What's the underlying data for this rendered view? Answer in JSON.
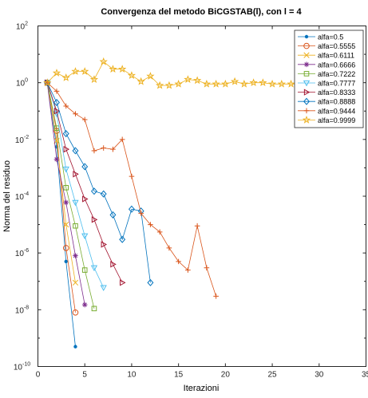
{
  "chart_data": {
    "type": "line",
    "title": "Convergenza del metodo BiCGSTAB(l), con l = 4",
    "xlabel": "Iterazioni",
    "ylabel": "Norma del residuo",
    "xlim": [
      0,
      35
    ],
    "ylim": [
      1e-10,
      100
    ],
    "yscale": "log",
    "grid": false,
    "legend_position": "top-right",
    "x_ticks": [
      "0",
      "5",
      "10",
      "15",
      "20",
      "25",
      "30",
      "35"
    ],
    "y_ticks": [
      {
        "base": "10",
        "exp": "-10",
        "value": 1e-10
      },
      {
        "base": "10",
        "exp": "-8",
        "value": 1e-08
      },
      {
        "base": "10",
        "exp": "-6",
        "value": 1e-06
      },
      {
        "base": "10",
        "exp": "-4",
        "value": 0.0001
      },
      {
        "base": "10",
        "exp": "-2",
        "value": 0.01
      },
      {
        "base": "10",
        "exp": "0",
        "value": 1
      },
      {
        "base": "10",
        "exp": "2",
        "value": 100
      }
    ],
    "series": [
      {
        "name": "alfa=0.5",
        "color": "#0072bd",
        "marker": "dot",
        "x": [
          1,
          2,
          3,
          4
        ],
        "y": [
          1,
          0.0055,
          5e-07,
          5e-10
        ]
      },
      {
        "name": "alfa=0.5555",
        "color": "#d95319",
        "marker": "circle",
        "x": [
          1,
          2,
          3,
          4
        ],
        "y": [
          1,
          0.02,
          1.5e-06,
          8e-09
        ]
      },
      {
        "name": "alfa=0.6111",
        "color": "#edb120",
        "marker": "x",
        "x": [
          1,
          2,
          3,
          4
        ],
        "y": [
          1,
          0.009,
          1e-05,
          9e-08
        ]
      },
      {
        "name": "alfa=0.6666",
        "color": "#7e2f8e",
        "marker": "star",
        "x": [
          1,
          2,
          3,
          4,
          5
        ],
        "y": [
          1,
          0.002,
          6e-05,
          8e-07,
          1.5e-08
        ]
      },
      {
        "name": "alfa=0.7222",
        "color": "#77ac30",
        "marker": "square",
        "x": [
          1,
          2,
          3,
          4,
          5,
          6
        ],
        "y": [
          1,
          0.025,
          0.0002,
          9e-06,
          2.5e-07,
          1.1e-08
        ]
      },
      {
        "name": "alfa=0.7777",
        "color": "#4dbeee",
        "marker": "triangle-down",
        "x": [
          1,
          2,
          3,
          4,
          5,
          6,
          7
        ],
        "y": [
          1,
          0.08,
          0.0009,
          6e-05,
          4e-06,
          3e-07,
          6e-08
        ]
      },
      {
        "name": "alfa=0.8333",
        "color": "#a2142f",
        "marker": "triangle-right",
        "x": [
          1,
          2,
          3,
          4,
          5,
          6,
          7,
          8,
          9
        ],
        "y": [
          1,
          0.1,
          0.0045,
          0.0006,
          8e-05,
          1.5e-05,
          2e-06,
          4e-07,
          9e-08
        ]
      },
      {
        "name": "alfa=0.8888",
        "color": "#0072bd",
        "marker": "diamond",
        "x": [
          1,
          2,
          3,
          4,
          5,
          6,
          7,
          8,
          9,
          10,
          11,
          12
        ],
        "y": [
          1,
          0.2,
          0.016,
          0.004,
          0.0011,
          0.00015,
          0.00012,
          2.2e-05,
          3e-06,
          3.5e-05,
          3e-05,
          9e-08
        ]
      },
      {
        "name": "alfa=0.9444",
        "color": "#d95319",
        "marker": "plus",
        "x": [
          1,
          2,
          3,
          4,
          5,
          6,
          7,
          8,
          9,
          10,
          11,
          12,
          13,
          14,
          15,
          16,
          17,
          18,
          19
        ],
        "y": [
          1,
          0.5,
          0.15,
          0.08,
          0.05,
          0.004,
          0.005,
          0.0045,
          0.01,
          0.0005,
          2.5e-05,
          1e-05,
          5.5e-06,
          1.5e-06,
          5e-07,
          2.5e-07,
          9e-06,
          3e-07,
          3e-08
        ]
      },
      {
        "name": "alfa=0.9999",
        "color": "#edb120",
        "marker": "pentagram",
        "x": [
          1,
          2,
          3,
          4,
          5,
          6,
          7,
          8,
          9,
          10,
          11,
          12,
          13,
          14,
          15,
          16,
          17,
          18,
          19,
          20,
          21,
          22,
          23,
          24,
          25,
          26,
          27,
          28,
          29,
          30
        ],
        "y": [
          1,
          2.2,
          1.5,
          2.5,
          2.5,
          1.3,
          5.5,
          3,
          3,
          1.8,
          1.1,
          1.7,
          0.8,
          0.8,
          0.9,
          1.3,
          1.2,
          0.9,
          0.9,
          0.9,
          1.1,
          0.9,
          1,
          1,
          0.9,
          0.9,
          0.9,
          0.9,
          0.9,
          0.9
        ]
      }
    ]
  }
}
